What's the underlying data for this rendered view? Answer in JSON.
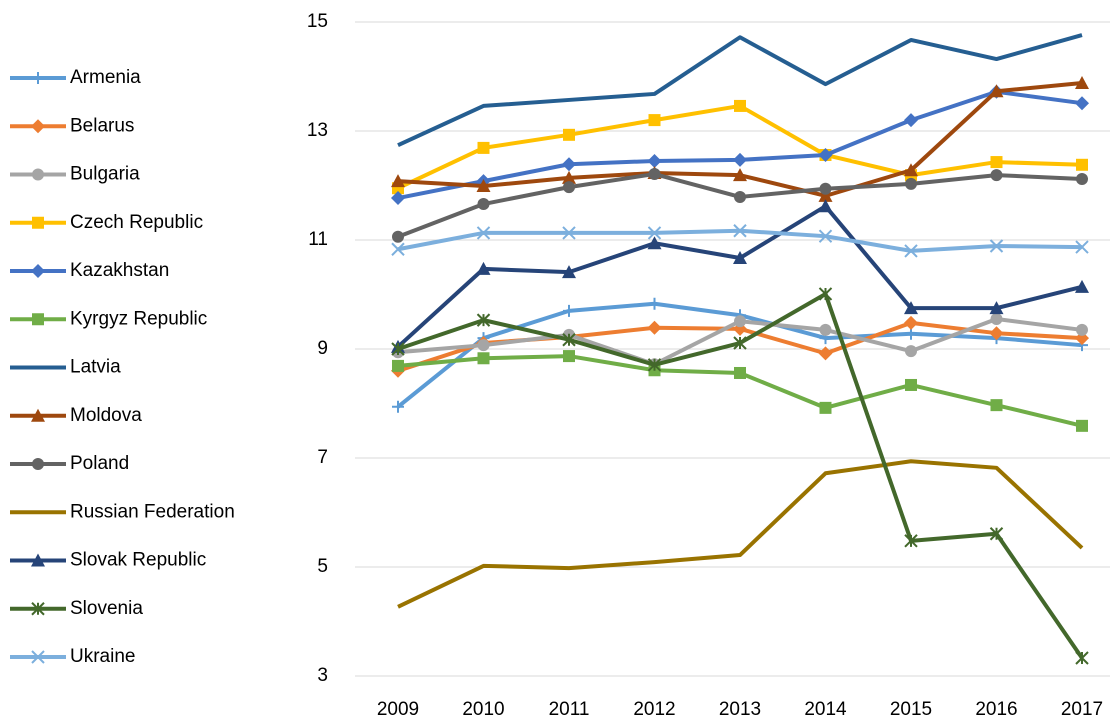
{
  "chart_data": {
    "type": "line",
    "categories": [
      "2009",
      "2010",
      "2011",
      "2012",
      "2013",
      "2014",
      "2015",
      "2016",
      "2017"
    ],
    "ylim": [
      3,
      15
    ],
    "yticks": [
      3,
      5,
      7,
      9,
      11,
      13,
      15
    ],
    "grid": true,
    "legend": "left",
    "series": [
      {
        "name": "Armenia",
        "color": "#5b9bd5",
        "marker": "plus",
        "values": [
          7.94,
          9.2,
          9.7,
          9.83,
          9.62,
          9.2,
          9.28,
          9.2,
          9.07
        ]
      },
      {
        "name": "Belarus",
        "color": "#ed7d31",
        "marker": "diamond",
        "values": [
          8.6,
          9.11,
          9.22,
          9.39,
          9.37,
          8.92,
          9.48,
          9.29,
          9.2
        ]
      },
      {
        "name": "Bulgaria",
        "color": "#a5a5a5",
        "marker": "circle",
        "values": [
          8.94,
          9.07,
          9.26,
          8.72,
          9.51,
          9.35,
          8.96,
          9.55,
          9.35
        ]
      },
      {
        "name": "Czech Republic",
        "color": "#ffc000",
        "marker": "square",
        "values": [
          11.95,
          12.69,
          12.93,
          13.2,
          13.46,
          12.56,
          12.19,
          12.43,
          12.38
        ]
      },
      {
        "name": "Kazakhstan",
        "color": "#4472c4",
        "marker": "diamond",
        "values": [
          11.77,
          12.08,
          12.39,
          12.45,
          12.47,
          12.56,
          13.2,
          13.72,
          13.51
        ]
      },
      {
        "name": "Kyrgyz Republic",
        "color": "#70ad47",
        "marker": "square",
        "values": [
          8.69,
          8.83,
          8.87,
          8.61,
          8.56,
          7.92,
          8.34,
          7.97,
          7.59
        ]
      },
      {
        "name": "Latvia",
        "color": "#255e91",
        "marker": "none",
        "values": [
          12.74,
          13.46,
          13.57,
          13.68,
          14.72,
          13.86,
          14.67,
          14.32,
          14.76
        ]
      },
      {
        "name": "Moldova",
        "color": "#9e480e",
        "marker": "triangle",
        "values": [
          12.08,
          11.99,
          12.14,
          12.23,
          12.19,
          11.81,
          12.28,
          13.73,
          13.88
        ]
      },
      {
        "name": "Poland",
        "color": "#636363",
        "marker": "circle",
        "values": [
          11.06,
          11.66,
          11.97,
          12.21,
          11.79,
          11.94,
          12.03,
          12.19,
          12.12
        ]
      },
      {
        "name": "Russian Federation",
        "color": "#997300",
        "marker": "none",
        "values": [
          4.27,
          5.02,
          4.98,
          5.09,
          5.22,
          6.72,
          6.94,
          6.82,
          5.35
        ]
      },
      {
        "name": "Slovak Republic",
        "color": "#264478",
        "marker": "triangle",
        "values": [
          9.04,
          10.47,
          10.41,
          10.94,
          10.67,
          11.62,
          9.75,
          9.75,
          10.14
        ]
      },
      {
        "name": "Slovenia",
        "color": "#43682b",
        "marker": "star",
        "values": [
          9.0,
          9.53,
          9.17,
          8.71,
          9.11,
          10.01,
          5.48,
          5.61,
          3.33
        ]
      },
      {
        "name": "Ukraine",
        "color": "#7cafdd",
        "marker": "x",
        "values": [
          10.83,
          11.13,
          11.13,
          11.13,
          11.17,
          11.07,
          10.8,
          10.89,
          10.87
        ]
      }
    ]
  }
}
